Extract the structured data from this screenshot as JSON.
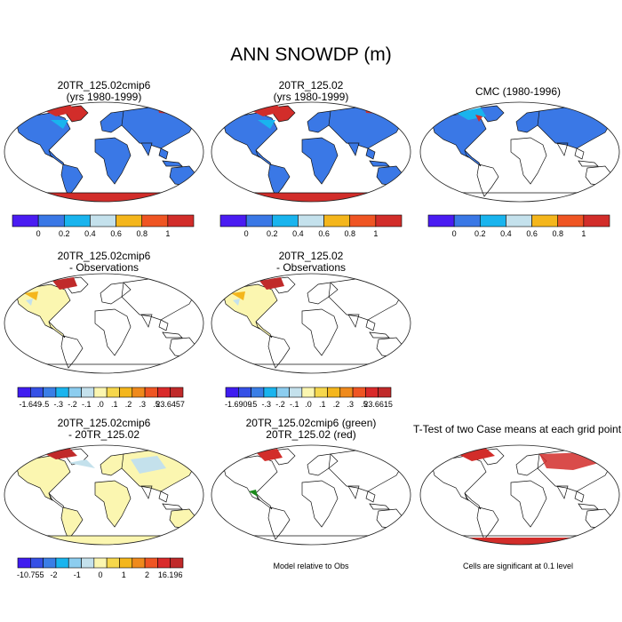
{
  "title": "ANN SNOWDP (m)",
  "colors": {
    "land_outline": "#111111",
    "map_background": "#ffffff",
    "highlight_marker": "#1c8a1c"
  },
  "panels": [
    {
      "id": "p1",
      "title_lines": [
        "20TR_125.02cmip6",
        "(yrs 1980-1999)"
      ],
      "fill": "full",
      "palette": "abs"
    },
    {
      "id": "p2",
      "title_lines": [
        "20TR_125.02",
        "(yrs 1980-1999)"
      ],
      "fill": "full",
      "palette": "abs"
    },
    {
      "id": "p3",
      "title_lines": [
        "CMC (1980-1996)"
      ],
      "fill": "obs",
      "palette": "abs"
    },
    {
      "id": "p4",
      "title_lines": [
        "20TR_125.02cmip6",
        "- Observations"
      ],
      "fill": "diff",
      "palette": "diff"
    },
    {
      "id": "p5",
      "title_lines": [
        "20TR_125.02",
        "- Observations"
      ],
      "fill": "diff",
      "palette": "diff"
    },
    {
      "id": "p7",
      "title_lines": [
        "20TR_125.02cmip6",
        "- 20TR_125.02"
      ],
      "fill": "casediff",
      "palette": "diff"
    },
    {
      "id": "p8",
      "title_lines": [
        "20TR_125.02cmip6 (green)",
        "20TR_125.02 (red)"
      ],
      "fill": "compare",
      "palette": "none"
    },
    {
      "id": "p9",
      "title_lines": [
        "T-Test of two Case means at each grid point"
      ],
      "fill": "ttest",
      "palette": "none"
    }
  ],
  "notes": {
    "p8": "Model relative to Obs",
    "p9": "Cells are significant at 0.1 level"
  },
  "chart_data": [
    {
      "type": "colorbar",
      "name": "abs_scale",
      "colors": [
        "#4a1cf2",
        "#3a78e6",
        "#19b4ee",
        "#c4e1ec",
        "#f4b61c",
        "#ef5523",
        "#d22d2a"
      ],
      "tick_labels": [
        "0",
        "0.2",
        "0.4",
        "0.6",
        "0.8",
        "1"
      ]
    },
    {
      "type": "colorbar",
      "name": "diff_scale_p4",
      "colors": [
        "#3f1cf0",
        "#3550e6",
        "#3a7ee6",
        "#19b4ee",
        "#8ccdef",
        "#c4e1ec",
        "#fbf6b0",
        "#f6d74c",
        "#f4b61c",
        "#ef8a1c",
        "#ef5523",
        "#d92a2a",
        "#c02a2a"
      ],
      "tick_labels": [
        "-1.649",
        "-.5",
        "-.3",
        "-.2",
        "-.1",
        ".0",
        ".1",
        ".2",
        ".3",
        ".5",
        "23.6457"
      ]
    },
    {
      "type": "colorbar",
      "name": "diff_scale_p5",
      "colors": [
        "#3f1cf0",
        "#3550e6",
        "#3a7ee6",
        "#19b4ee",
        "#8ccdef",
        "#c4e1ec",
        "#fbf6b0",
        "#f6d74c",
        "#f4b61c",
        "#ef8a1c",
        "#ef5523",
        "#d92a2a",
        "#c02a2a"
      ],
      "tick_labels": [
        "-1.6909",
        "-.5",
        "-.3",
        "-.2",
        "-.1",
        ".0",
        ".1",
        ".2",
        ".3",
        ".5",
        "23.6615"
      ]
    },
    {
      "type": "colorbar",
      "name": "diff_scale_p7",
      "colors": [
        "#3f1cf0",
        "#3550e6",
        "#3a7ee6",
        "#19b4ee",
        "#8ccdef",
        "#c4e1ec",
        "#fbf6b0",
        "#f6d74c",
        "#f4b61c",
        "#ef8a1c",
        "#ef5523",
        "#d92a2a",
        "#c02a2a"
      ],
      "tick_labels": [
        "-10.755",
        "-2",
        "-1",
        "0",
        "1",
        "2",
        "16.196"
      ]
    }
  ]
}
